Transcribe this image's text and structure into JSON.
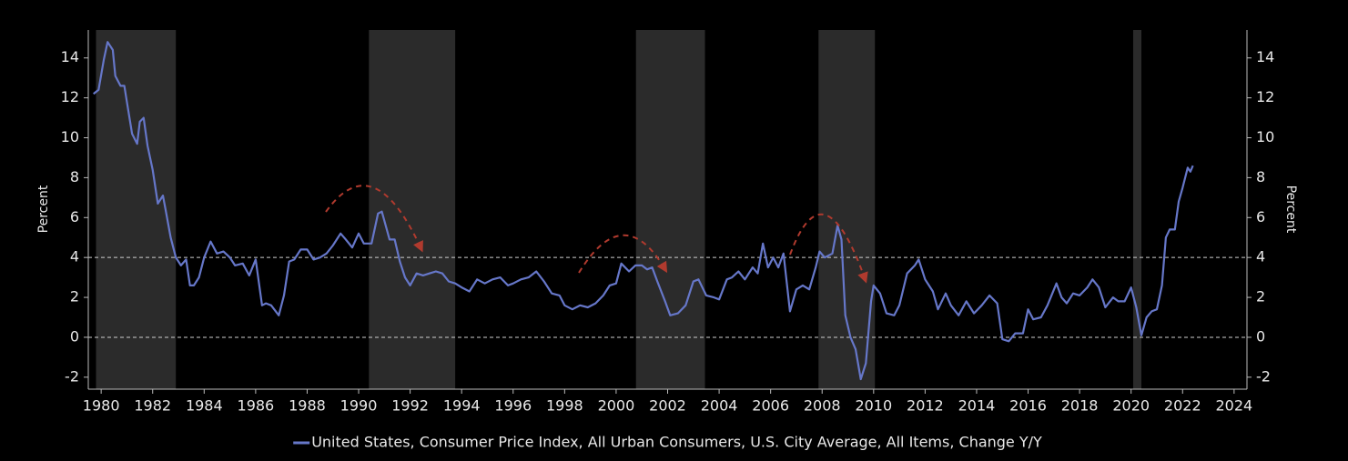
{
  "chart_data": {
    "type": "line",
    "ylabel": "Percent",
    "y2label": "Percent",
    "xlim": [
      1979.5,
      2024.5
    ],
    "xticks": [
      1980,
      1982,
      1984,
      1986,
      1988,
      1990,
      1992,
      1994,
      1996,
      1998,
      2000,
      2002,
      2004,
      2006,
      2008,
      2010,
      2012,
      2014,
      2016,
      2018,
      2020,
      2022,
      2024
    ],
    "ylim": [
      -2.6,
      15.4
    ],
    "yticks": [
      -2,
      0,
      2,
      4,
      6,
      8,
      10,
      12,
      14
    ],
    "y2lim": [
      -2.6,
      15.4
    ],
    "y2ticks": [
      -2,
      0,
      2,
      4,
      6,
      8,
      10,
      12,
      14
    ],
    "reference_lines": [
      0,
      4
    ],
    "shaded_regions": [
      [
        1979.8,
        1982.9
      ],
      [
        1990.4,
        1993.75
      ],
      [
        2000.77,
        2003.45
      ],
      [
        2007.86,
        2010.05
      ],
      [
        2020.08,
        2020.4
      ]
    ],
    "legend": "bottom",
    "x": [
      1979.7,
      1979.9,
      1980.1,
      1980.25,
      1980.45,
      1980.55,
      1980.75,
      1980.9,
      1981.0,
      1981.2,
      1981.4,
      1981.5,
      1981.65,
      1981.8,
      1982.0,
      1982.2,
      1982.4,
      1982.5,
      1982.7,
      1982.9,
      1983.1,
      1983.3,
      1983.45,
      1983.6,
      1983.8,
      1984.0,
      1984.25,
      1984.5,
      1984.75,
      1985.0,
      1985.2,
      1985.5,
      1985.75,
      1986.0,
      1986.25,
      1986.4,
      1986.6,
      1986.9,
      1987.1,
      1987.3,
      1987.5,
      1987.75,
      1988.0,
      1988.25,
      1988.5,
      1988.75,
      1989.0,
      1989.3,
      1989.5,
      1989.75,
      1990.0,
      1990.2,
      1990.5,
      1990.75,
      1990.9,
      1991.2,
      1991.4,
      1991.6,
      1991.8,
      1992.0,
      1992.25,
      1992.5,
      1992.75,
      1993.0,
      1993.25,
      1993.5,
      1993.75,
      1994.0,
      1994.3,
      1994.6,
      1994.9,
      1995.2,
      1995.5,
      1995.8,
      1996.0,
      1996.3,
      1996.6,
      1996.9,
      1997.2,
      1997.5,
      1997.8,
      1998.0,
      1998.3,
      1998.6,
      1998.9,
      1999.2,
      1999.5,
      1999.75,
      2000.0,
      2000.2,
      2000.5,
      2000.75,
      2001.0,
      2001.2,
      2001.4,
      2001.6,
      2001.9,
      2002.1,
      2002.4,
      2002.7,
      2003.0,
      2003.2,
      2003.5,
      2003.8,
      2004.0,
      2004.3,
      2004.5,
      2004.75,
      2005.0,
      2005.3,
      2005.5,
      2005.7,
      2005.9,
      2006.1,
      2006.3,
      2006.5,
      2006.75,
      2007.0,
      2007.25,
      2007.5,
      2007.75,
      2007.9,
      2008.1,
      2008.4,
      2008.6,
      2008.75,
      2008.9,
      2009.1,
      2009.3,
      2009.5,
      2009.7,
      2009.9,
      2010.0,
      2010.25,
      2010.5,
      2010.8,
      2011.0,
      2011.3,
      2011.6,
      2011.75,
      2012.0,
      2012.3,
      2012.5,
      2012.8,
      2013.0,
      2013.3,
      2013.6,
      2013.9,
      2014.2,
      2014.5,
      2014.8,
      2015.0,
      2015.25,
      2015.5,
      2015.8,
      2016.0,
      2016.2,
      2016.5,
      2016.75,
      2017.1,
      2017.3,
      2017.5,
      2017.75,
      2018.0,
      2018.3,
      2018.5,
      2018.75,
      2019.0,
      2019.3,
      2019.5,
      2019.75,
      2020.0,
      2020.2,
      2020.4,
      2020.6,
      2020.8,
      2021.0,
      2021.2,
      2021.35,
      2021.5,
      2021.7,
      2021.85,
      2022.0,
      2022.2,
      2022.3,
      2022.4
    ],
    "series": [
      {
        "name": "United States, Consumer Price Index, All Urban Consumers, U.S. City Average, All Items, Change Y/Y",
        "color": "#6677c9",
        "values": [
          12.2,
          12.4,
          13.9,
          14.8,
          14.4,
          13.1,
          12.6,
          12.6,
          11.8,
          10.2,
          9.7,
          10.8,
          11.0,
          9.6,
          8.4,
          6.7,
          7.1,
          6.4,
          5.0,
          4.0,
          3.6,
          3.9,
          2.6,
          2.6,
          3.0,
          4.0,
          4.8,
          4.2,
          4.3,
          4.0,
          3.6,
          3.7,
          3.1,
          3.9,
          1.6,
          1.7,
          1.6,
          1.1,
          2.1,
          3.8,
          3.9,
          4.4,
          4.4,
          3.9,
          4.0,
          4.2,
          4.6,
          5.2,
          4.9,
          4.5,
          5.2,
          4.7,
          4.7,
          6.2,
          6.3,
          4.9,
          4.9,
          3.8,
          3.0,
          2.6,
          3.2,
          3.1,
          3.2,
          3.3,
          3.2,
          2.8,
          2.7,
          2.5,
          2.3,
          2.9,
          2.7,
          2.9,
          3.0,
          2.6,
          2.7,
          2.9,
          3.0,
          3.3,
          2.8,
          2.2,
          2.1,
          1.6,
          1.4,
          1.6,
          1.5,
          1.7,
          2.1,
          2.6,
          2.7,
          3.7,
          3.3,
          3.6,
          3.6,
          3.4,
          3.5,
          2.8,
          1.8,
          1.1,
          1.2,
          1.6,
          2.8,
          2.9,
          2.1,
          2.0,
          1.9,
          2.9,
          3.0,
          3.3,
          2.9,
          3.5,
          3.2,
          4.7,
          3.5,
          4.0,
          3.5,
          4.2,
          1.3,
          2.4,
          2.6,
          2.4,
          3.5,
          4.3,
          4.0,
          4.2,
          5.6,
          4.9,
          1.1,
          0.0,
          -0.6,
          -2.1,
          -1.3,
          1.8,
          2.6,
          2.2,
          1.2,
          1.1,
          1.6,
          3.2,
          3.6,
          3.9,
          2.9,
          2.3,
          1.4,
          2.2,
          1.6,
          1.1,
          1.8,
          1.2,
          1.6,
          2.1,
          1.7,
          -0.1,
          -0.2,
          0.2,
          0.2,
          1.4,
          0.9,
          1.0,
          1.6,
          2.7,
          2.0,
          1.7,
          2.2,
          2.1,
          2.5,
          2.9,
          2.5,
          1.5,
          2.0,
          1.8,
          1.8,
          2.5,
          1.5,
          0.1,
          1.0,
          1.3,
          1.4,
          2.6,
          5.0,
          5.4,
          5.4,
          6.8,
          7.5,
          8.5,
          8.3,
          8.6
        ]
      }
    ]
  }
}
